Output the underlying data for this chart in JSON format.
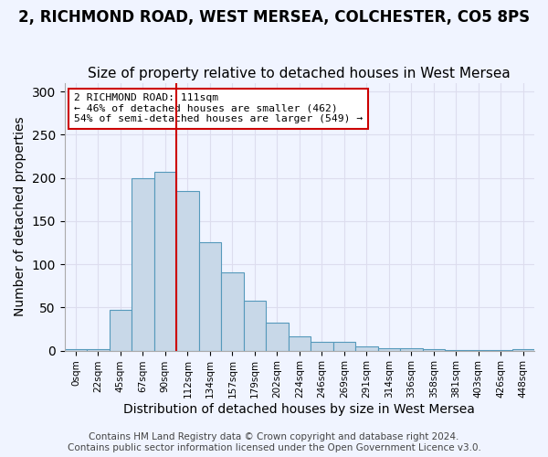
{
  "title1": "2, RICHMOND ROAD, WEST MERSEA, COLCHESTER, CO5 8PS",
  "title2": "Size of property relative to detached houses in West Mersea",
  "xlabel": "Distribution of detached houses by size in West Mersea",
  "ylabel": "Number of detached properties",
  "footnote1": "Contains HM Land Registry data © Crown copyright and database right 2024.",
  "footnote2": "Contains public sector information licensed under the Open Government Licence v3.0.",
  "bar_labels": [
    "0sqm",
    "22sqm",
    "45sqm",
    "67sqm",
    "90sqm",
    "112sqm",
    "134sqm",
    "157sqm",
    "179sqm",
    "202sqm",
    "224sqm",
    "246sqm",
    "269sqm",
    "291sqm",
    "314sqm",
    "336sqm",
    "358sqm",
    "381sqm",
    "403sqm",
    "426sqm",
    "448sqm"
  ],
  "bar_values": [
    2,
    2,
    47,
    200,
    207,
    185,
    125,
    91,
    58,
    32,
    16,
    10,
    10,
    5,
    3,
    3,
    2,
    1,
    1,
    1,
    2
  ],
  "bar_color": "#c8d8e8",
  "bar_edge_color": "#5599bb",
  "property_line_x": 5,
  "property_sqm": 111,
  "annotation_title": "2 RICHMOND ROAD: 111sqm",
  "annotation_line1": "← 46% of detached houses are smaller (462)",
  "annotation_line2": "54% of semi-detached houses are larger (549) →",
  "annotation_box_color": "#ffffff",
  "annotation_box_edge_color": "#cc0000",
  "red_line_color": "#cc0000",
  "ylim": [
    0,
    310
  ],
  "yticks": [
    0,
    50,
    100,
    150,
    200,
    250,
    300
  ],
  "grid_color": "#ddddee",
  "bg_color": "#f0f4ff",
  "title1_fontsize": 12,
  "title2_fontsize": 11,
  "xlabel_fontsize": 10,
  "ylabel_fontsize": 10,
  "footnote_fontsize": 7.5
}
